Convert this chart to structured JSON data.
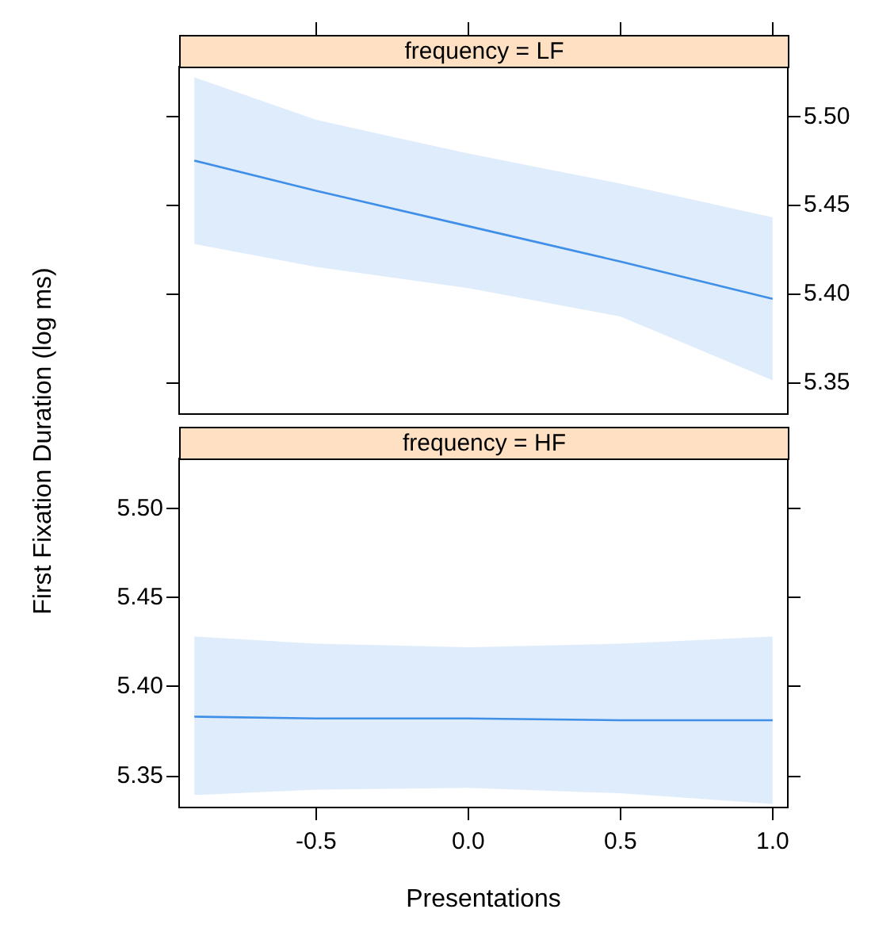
{
  "chart_data": [
    {
      "type": "line",
      "title": "frequency = LF",
      "x": [
        -0.9,
        -0.5,
        0,
        0.5,
        1.0
      ],
      "xlim": [
        -0.95,
        1.05
      ],
      "ylim": [
        5.332,
        5.528
      ],
      "xticks": [
        {
          "value": -0.5,
          "label": null
        },
        {
          "value": 0,
          "label": null
        },
        {
          "value": 0.5,
          "label": null
        },
        {
          "value": 1,
          "label": null
        }
      ],
      "yticks": [
        {
          "value": 5.35,
          "label": "5.35"
        },
        {
          "value": 5.4,
          "label": "5.40"
        },
        {
          "value": 5.45,
          "label": "5.45"
        },
        {
          "value": 5.5,
          "label": "5.50"
        }
      ],
      "series": [
        {
          "color": "#3f8ee8",
          "values": [
            5.475,
            5.458,
            5.438,
            5.418,
            5.397
          ],
          "lower": [
            5.428,
            5.415,
            5.403,
            5.387,
            5.351
          ],
          "upper": [
            5.522,
            5.498,
            5.479,
            5.462,
            5.443
          ]
        }
      ],
      "tick_labels": "y",
      "grid": false
    },
    {
      "type": "line",
      "title": "frequency = HF",
      "xlabel": "Presentations",
      "ylabel": "First Fixation Duration (log ms)",
      "x": [
        -0.9,
        -0.5,
        0,
        0.5,
        1.0
      ],
      "xlim": [
        -0.95,
        1.05
      ],
      "ylim": [
        5.332,
        5.528
      ],
      "xticks": [
        {
          "value": -0.5,
          "label": "-0.5"
        },
        {
          "value": 0,
          "label": "0.0"
        },
        {
          "value": 0.5,
          "label": "0.5"
        },
        {
          "value": 1,
          "label": "1.0"
        }
      ],
      "yticks": [
        {
          "value": 5.35,
          "label": "5.35"
        },
        {
          "value": 5.4,
          "label": "5.40"
        },
        {
          "value": 5.45,
          "label": "5.45"
        },
        {
          "value": 5.5,
          "label": "5.50"
        }
      ],
      "series": [
        {
          "color": "#3f8ee8",
          "values": [
            5.383,
            5.382,
            5.382,
            5.381,
            5.381
          ],
          "lower": [
            5.339,
            5.342,
            5.343,
            5.34,
            5.334
          ],
          "upper": [
            5.428,
            5.424,
            5.422,
            5.424,
            5.428
          ]
        }
      ],
      "grid": false
    }
  ]
}
